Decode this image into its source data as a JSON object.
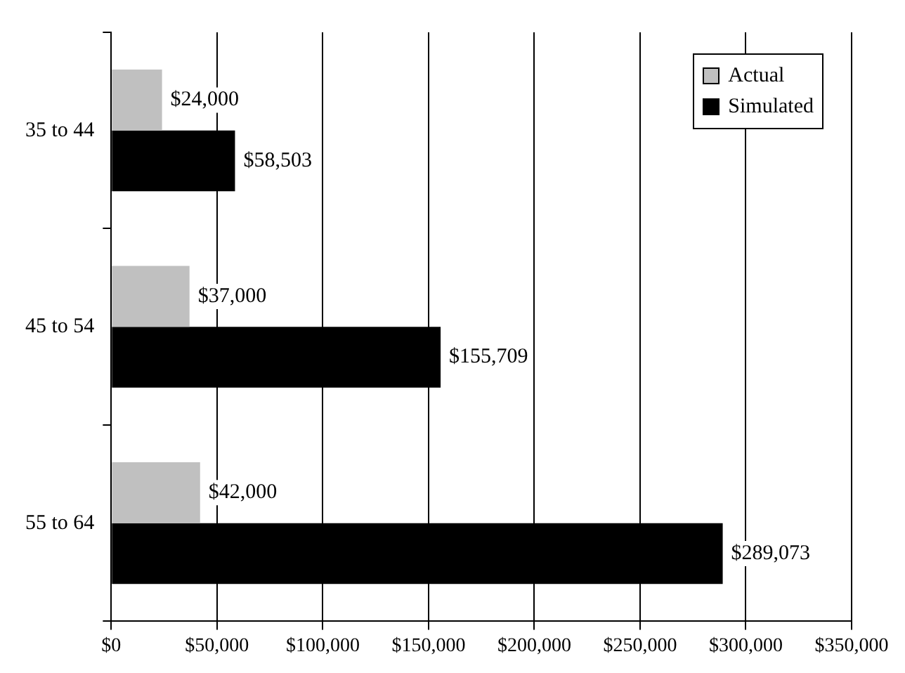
{
  "chart_data": {
    "type": "bar",
    "orientation": "horizontal",
    "categories": [
      "35 to 44",
      "45 to 54",
      "55 to 64"
    ],
    "series": [
      {
        "name": "Actual",
        "color": "#c0c0c0",
        "values": [
          24000,
          37000,
          42000
        ],
        "value_labels": [
          "$24,000",
          "$37,000",
          "$42,000"
        ]
      },
      {
        "name": "Simulated",
        "color": "#000000",
        "values": [
          58503,
          155709,
          289073
        ],
        "value_labels": [
          "$58,503",
          "$155,709",
          "$289,073"
        ]
      }
    ],
    "xlim": [
      0,
      350000
    ],
    "xticks": [
      {
        "value": 0,
        "label": "$0"
      },
      {
        "value": 50000,
        "label": "$50,000"
      },
      {
        "value": 100000,
        "label": "$100,000"
      },
      {
        "value": 150000,
        "label": "$150,000"
      },
      {
        "value": 200000,
        "label": "$200,000"
      },
      {
        "value": 250000,
        "label": "$250,000"
      },
      {
        "value": 300000,
        "label": "$300,000"
      },
      {
        "value": 350000,
        "label": "$350,000"
      }
    ],
    "grid": "x",
    "legend": "top right"
  }
}
